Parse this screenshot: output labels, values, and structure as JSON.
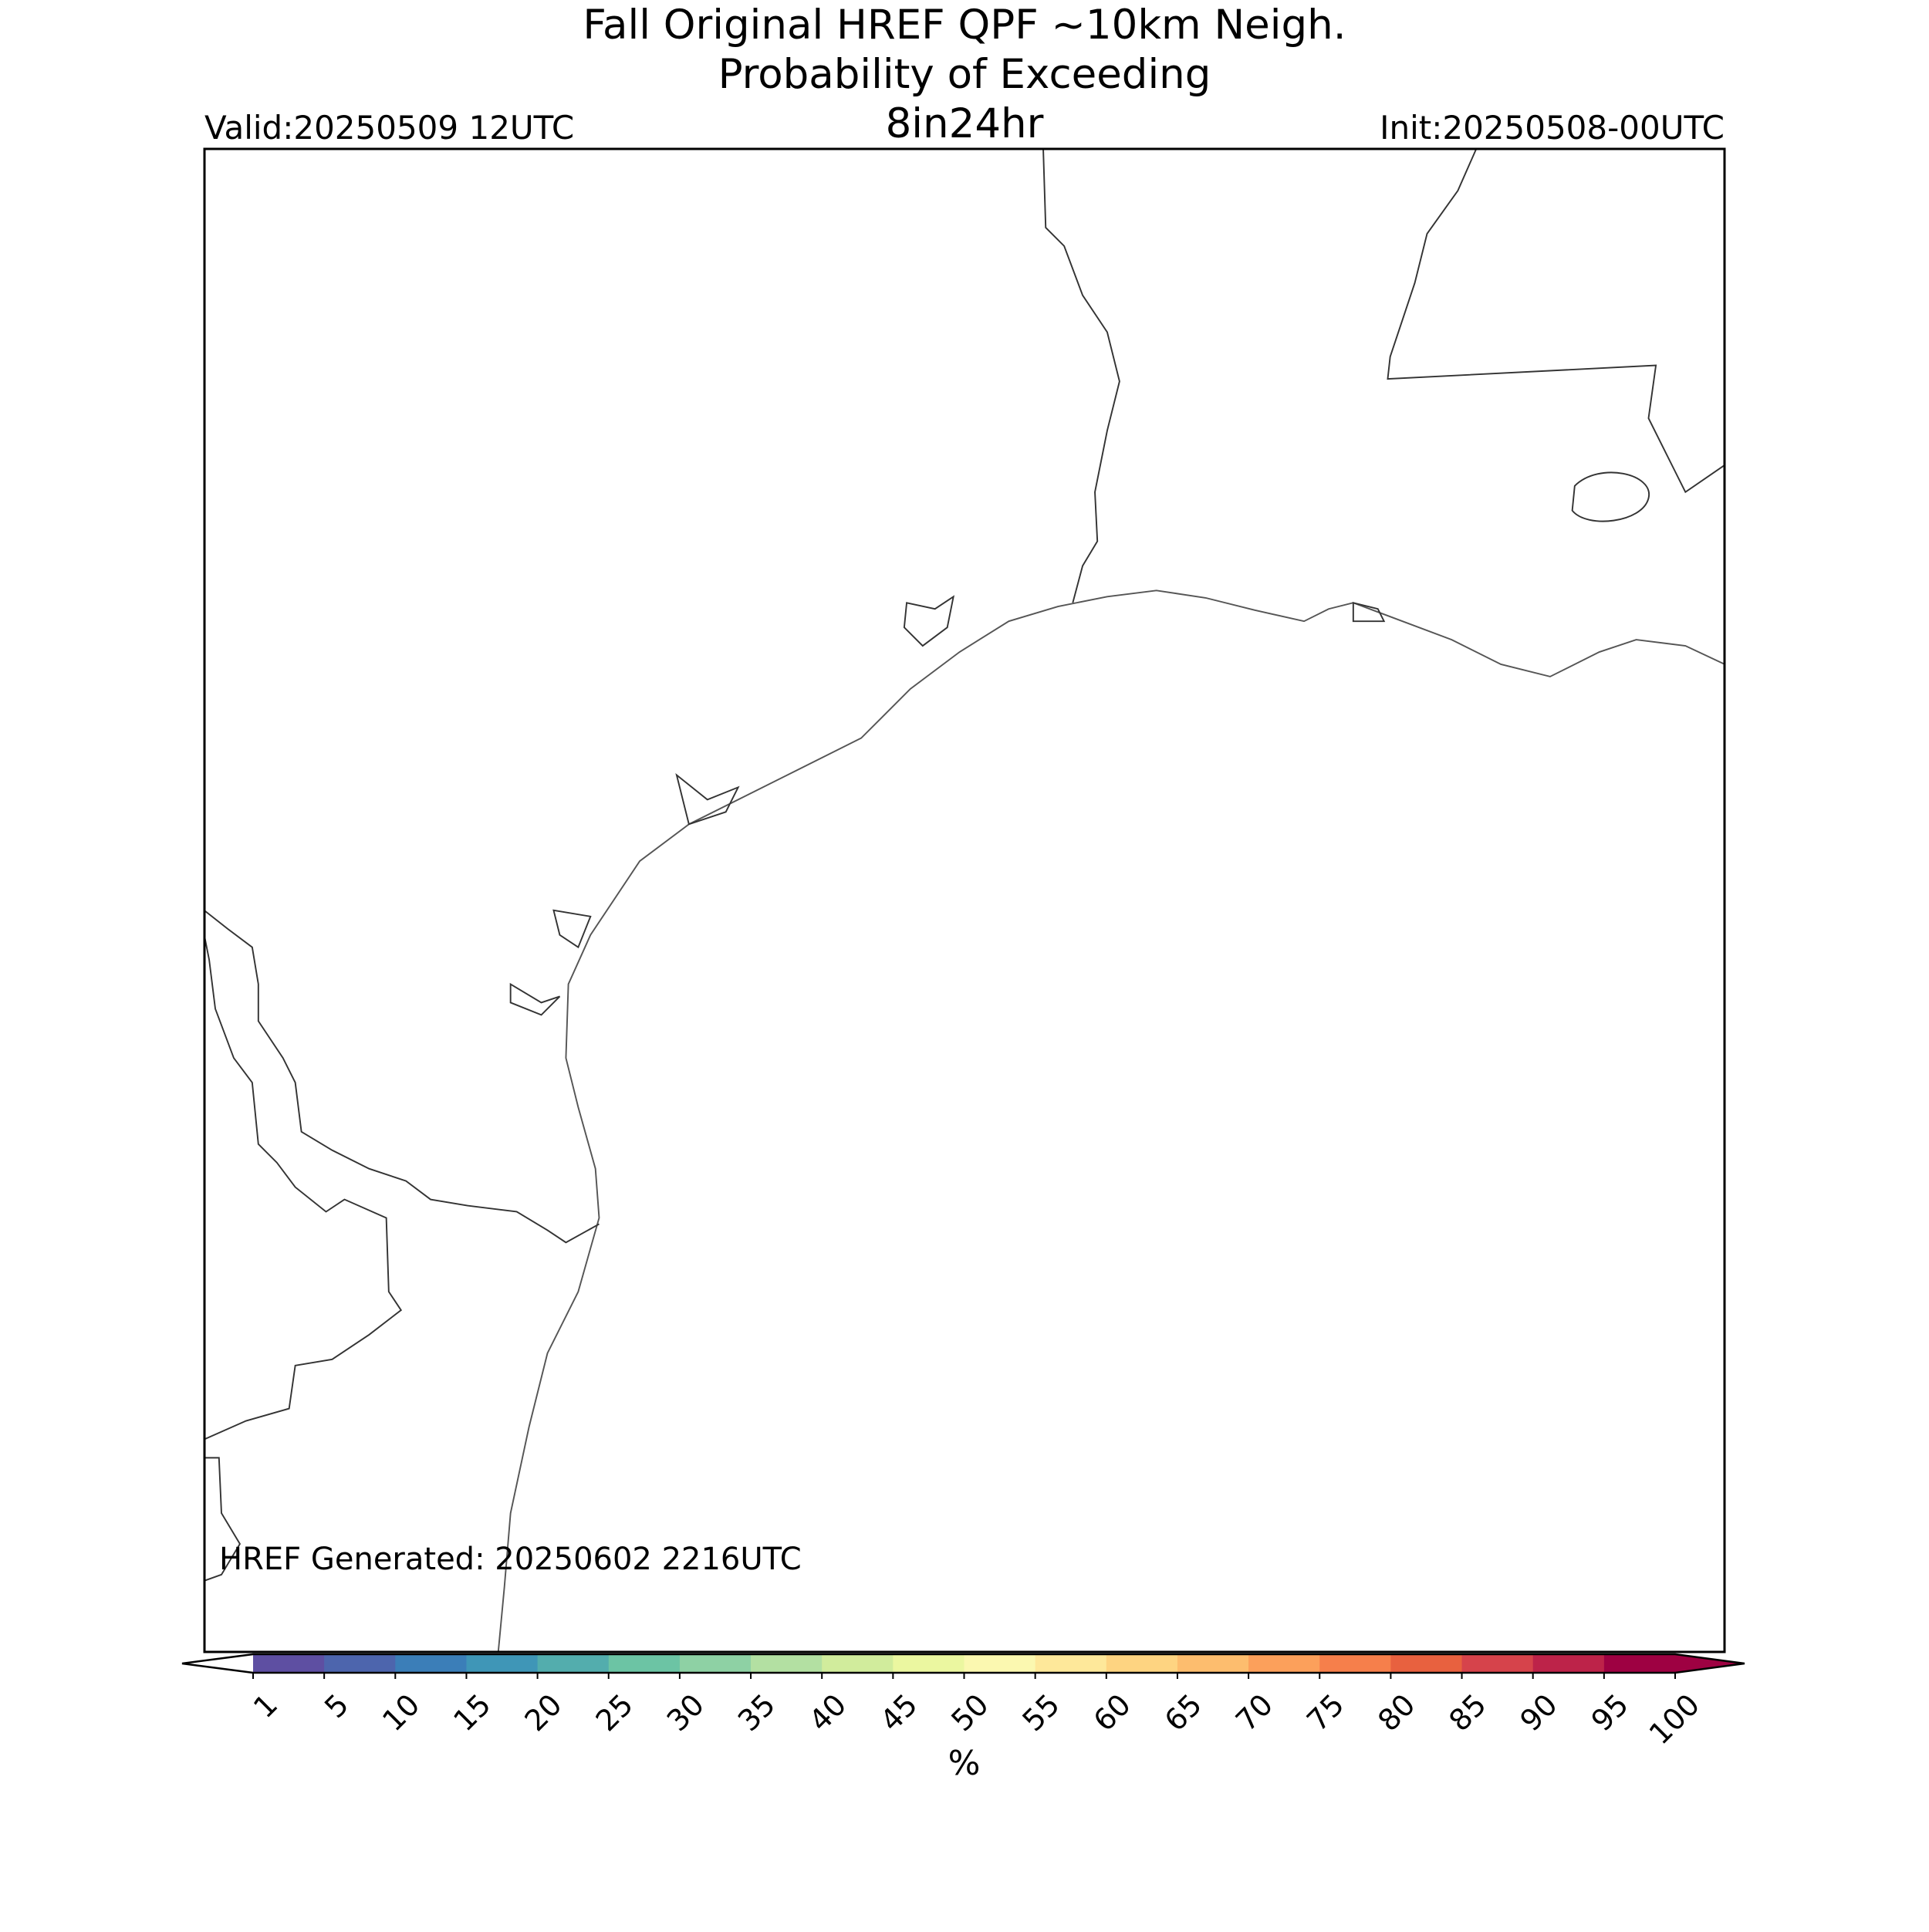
{
  "chart_data": {
    "type": "map",
    "title": [
      "Fall Original HREF QPF ~10km Neigh.",
      "Probability of Exceeding",
      "8in24hr"
    ],
    "valid": "Valid:20250509 12UTC",
    "init": "Init:20250508-00UTC",
    "generated": "HREF Generated: 20250602 2216UTC",
    "colorbar": {
      "label": "%",
      "ticks": [
        1,
        5,
        10,
        15,
        20,
        25,
        30,
        35,
        40,
        45,
        50,
        55,
        60,
        65,
        70,
        75,
        80,
        85,
        90,
        95,
        100
      ],
      "colors": [
        "#5e4fa2",
        "#4d65ad",
        "#3b7eb8",
        "#3f96b7",
        "#53adad",
        "#6cc4a4",
        "#8ed1a4",
        "#b3e0a2",
        "#d1ec9c",
        "#ebf7a0",
        "#fbf8b0",
        "#fee89a",
        "#fed481",
        "#fdbd6e",
        "#fca05b",
        "#f67f4b",
        "#e8613f",
        "#d6434b",
        "#bd2349",
        "#9e0142"
      ],
      "under_color": "#ffffff",
      "over_color": "#9e0142"
    }
  }
}
